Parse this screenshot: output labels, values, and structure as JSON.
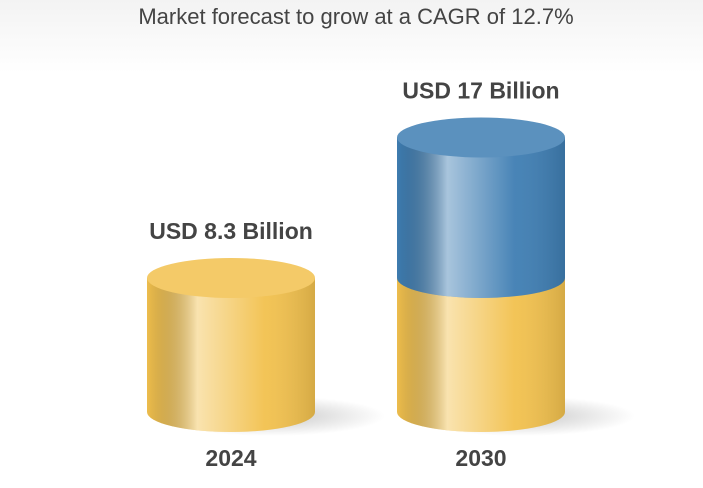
{
  "chart_data": {
    "type": "bar",
    "title": "Market forecast to grow at a CAGR of 12.7%",
    "categories": [
      "2024",
      "2030"
    ],
    "values": [
      8.3,
      17
    ],
    "value_labels": [
      "USD 8.3 Billion",
      "USD 17 Billion"
    ],
    "color": "#f2c14e",
    "growth_color": "#3f7eb3"
  }
}
